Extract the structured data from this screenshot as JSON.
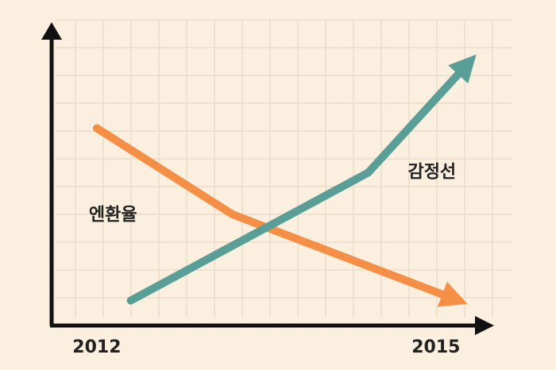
{
  "chart_data": {
    "type": "line",
    "xlim": [
      2011.6,
      2015.5
    ],
    "xticks": [
      2012,
      2015
    ],
    "ylim": [
      0,
      11
    ],
    "grid": true,
    "series": [
      {
        "name": "엔환율",
        "color": "#f58f45",
        "x": [
          2012,
          2013.2,
          2015.2
        ],
        "values": [
          7.1,
          4.0,
          0.9
        ]
      },
      {
        "name": "감정선",
        "color": "#5a9e98",
        "x": [
          2012.3,
          2014.4,
          2015.3
        ],
        "values": [
          0.9,
          5.5,
          9.5
        ]
      }
    ]
  }
}
